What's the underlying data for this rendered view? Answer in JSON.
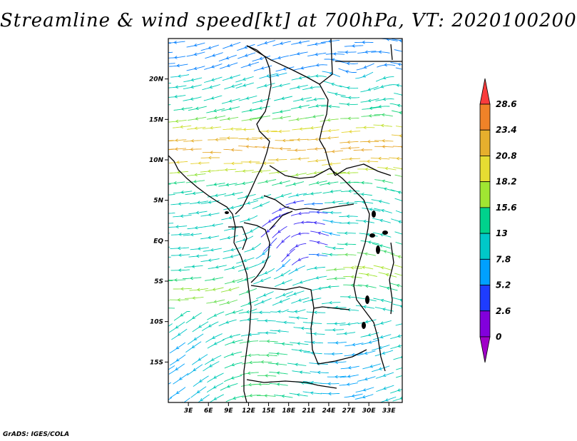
{
  "title": "Streamline & wind speed[kt] at 700hPa, VT: 2020100200",
  "footer": "GrADS: IGES/COLA",
  "map": {
    "lon_range": [
      0,
      35
    ],
    "lat_range": [
      -20,
      25
    ],
    "y_ticks": [
      {
        "lat": 20,
        "label": "20N"
      },
      {
        "lat": 15,
        "label": "15N"
      },
      {
        "lat": 10,
        "label": "10N"
      },
      {
        "lat": 5,
        "label": "5N"
      },
      {
        "lat": 0,
        "label": "EQ"
      },
      {
        "lat": -5,
        "label": "5S"
      },
      {
        "lat": -10,
        "label": "10S"
      },
      {
        "lat": -15,
        "label": "15S"
      }
    ],
    "x_ticks": [
      {
        "lon": 3,
        "label": "3E"
      },
      {
        "lon": 6,
        "label": "6E"
      },
      {
        "lon": 9,
        "label": "9E"
      },
      {
        "lon": 12,
        "label": "12E"
      },
      {
        "lon": 15,
        "label": "15E"
      },
      {
        "lon": 18,
        "label": "18E"
      },
      {
        "lon": 21,
        "label": "21E"
      },
      {
        "lon": 24,
        "label": "24E"
      },
      {
        "lon": 27,
        "label": "27E"
      },
      {
        "lon": 30,
        "label": "30E"
      },
      {
        "lon": 33,
        "label": "33E"
      }
    ]
  },
  "colorbar": {
    "levels": [
      "0",
      "2.6",
      "5.2",
      "7.8",
      "13",
      "15.6",
      "18.2",
      "20.8",
      "23.4",
      "28.6"
    ],
    "colors": [
      "#a000c8",
      "#8200dc",
      "#1e3cff",
      "#00a0ff",
      "#00c8c8",
      "#00d28c",
      "#a0e632",
      "#e6dc32",
      "#e6af2d",
      "#f08228",
      "#fa3c3c"
    ]
  }
}
